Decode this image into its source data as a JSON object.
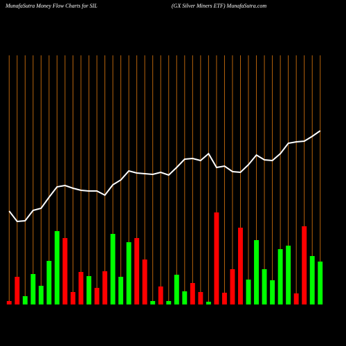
{
  "chart_data": {
    "type": "bar",
    "title": "MunafaSutra  Money Flow  Charts for SIL",
    "subtitle": "(GX  Silver Miners ETF) MunafaSutra.com",
    "categories": [
      null,
      null,
      null,
      null,
      null,
      null,
      null,
      null,
      null,
      null,
      null,
      null,
      null,
      null,
      null,
      null,
      null,
      null,
      null,
      null,
      null,
      null,
      null,
      null,
      null,
      null,
      null,
      null,
      null,
      null,
      null,
      null,
      null,
      null,
      null,
      null,
      null,
      null,
      null,
      null
    ],
    "values": [
      5,
      40,
      12,
      44,
      27,
      63,
      106,
      96,
      18,
      47,
      41,
      24,
      48,
      102,
      40,
      90,
      96,
      65,
      5,
      26,
      5,
      43,
      19,
      31,
      18,
      4,
      133,
      17,
      51,
      111,
      36,
      93,
      51,
      35,
      80,
      85,
      16,
      113,
      70,
      62
    ],
    "colors": [
      "#ff0000",
      "#ff0000",
      "#00ff00",
      "#00ff00",
      "#00ff00",
      "#00ff00",
      "#00ff00",
      "#ff0000",
      "#ff0000",
      "#ff0000",
      "#00ff00",
      "#ff0000",
      "#ff0000",
      "#00ff00",
      "#00ff00",
      "#00ff00",
      "#ff0000",
      "#ff0000",
      "#00ff00",
      "#ff0000",
      "#00ff00",
      "#00ff00",
      "#00ff00",
      "#ff0000",
      "#ff0000",
      "#00ff00",
      "#ff0000",
      "#ff0000",
      "#ff0000",
      "#ff0000",
      "#00ff00",
      "#00ff00",
      "#00ff00",
      "#00ff00",
      "#00ff00",
      "#00ff00",
      "#ff0000",
      "#ff0000",
      "#00ff00",
      "#00ff00"
    ],
    "line_values": [
      135,
      120,
      121,
      136,
      139,
      155,
      170,
      172,
      168,
      165,
      164,
      164,
      158,
      173,
      180,
      193,
      190,
      189,
      188,
      191,
      187,
      198,
      210,
      211,
      208,
      218,
      198,
      200,
      192,
      191,
      202,
      216,
      209,
      208,
      218,
      233,
      235,
      236,
      243,
      251
    ],
    "line_color": "#ffffff",
    "ylim": [
      0,
      360
    ]
  }
}
